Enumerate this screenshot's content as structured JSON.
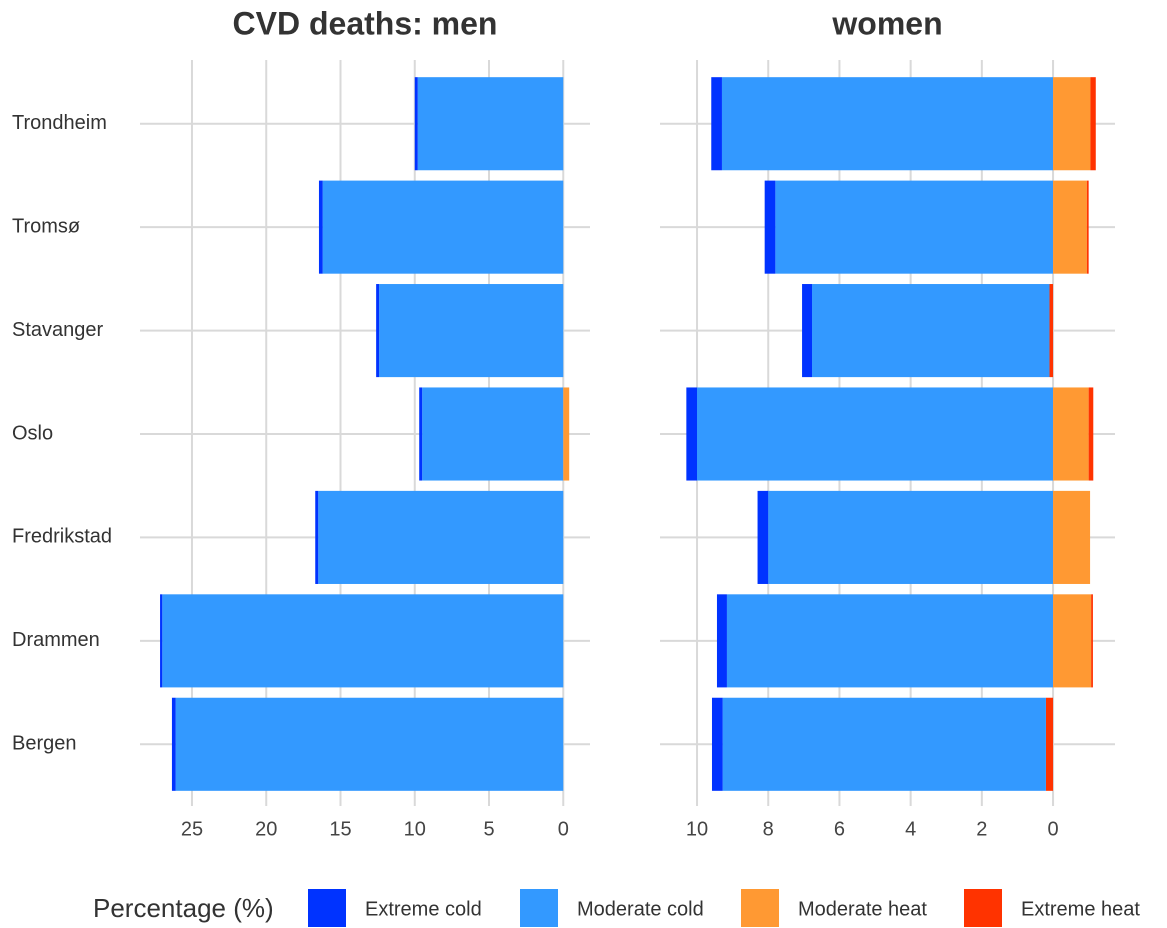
{
  "chart_data": [
    {
      "type": "barh",
      "title": "CVD deaths: men",
      "categories": [
        "Trondheim",
        "Tromsø",
        "Stavanger",
        "Oslo",
        "Fredrikstad",
        "Drammen",
        "Bergen"
      ],
      "legend_title": "Percentage (%)",
      "series": [
        {
          "name": "Extreme cold",
          "color": "#0033ff",
          "values": [
            0.2,
            0.25,
            0.2,
            0.2,
            0.2,
            0.15,
            0.25
          ]
        },
        {
          "name": "Moderate cold",
          "color": "#3399ff",
          "values": [
            9.8,
            16.2,
            12.4,
            9.5,
            16.5,
            27.0,
            26.1
          ]
        },
        {
          "name": "Moderate heat",
          "color": "#ff9933",
          "values": [
            0,
            0,
            0,
            -0.4,
            0,
            0,
            0
          ]
        },
        {
          "name": "Extreme heat",
          "color": "#ff3300",
          "values": [
            0,
            0,
            0,
            0,
            0,
            0,
            0
          ]
        }
      ],
      "xlim": [
        28.5,
        -1.8
      ],
      "xticks": [
        25,
        20,
        15,
        10,
        5,
        0
      ],
      "grid": true
    },
    {
      "type": "barh",
      "title": "women",
      "series": [
        {
          "values": [
            0.3,
            0.3,
            0.28,
            0.3,
            0.3,
            0.28,
            0.3
          ]
        },
        {
          "values": [
            9.3,
            7.8,
            6.67,
            10.0,
            8.0,
            9.16,
            9.08
          ]
        },
        {
          "values": [
            -1.05,
            -0.95,
            0,
            -1.0,
            -1.04,
            -1.07,
            0
          ]
        },
        {
          "values": [
            -0.15,
            -0.05,
            0.1,
            -0.13,
            0,
            -0.05,
            0.2
          ]
        }
      ],
      "xlim": [
        11.04,
        -1.74
      ],
      "xticks": [
        10,
        8,
        6,
        4,
        2,
        0
      ],
      "grid": true
    }
  ]
}
